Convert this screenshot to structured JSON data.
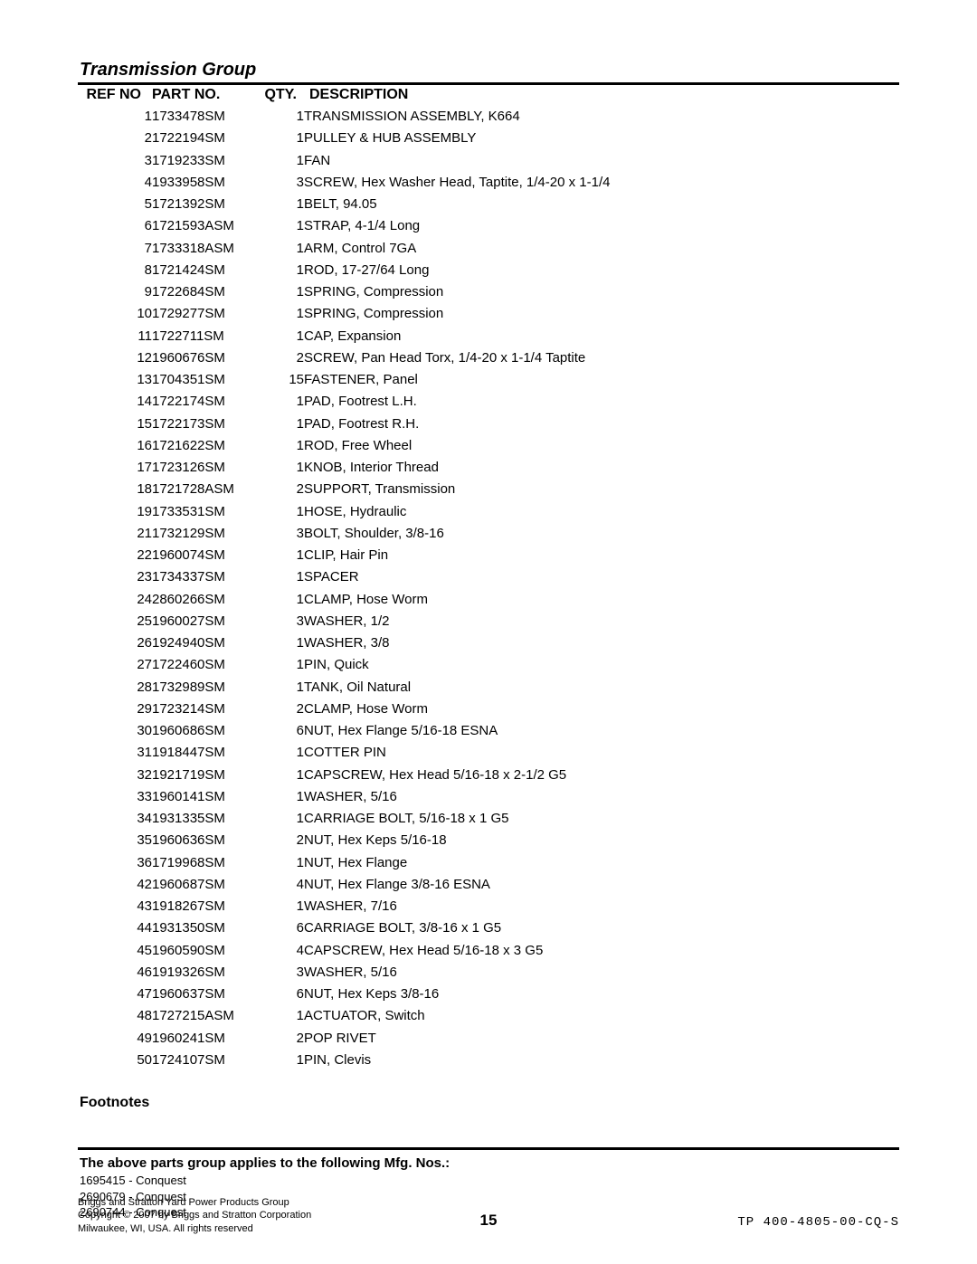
{
  "title": "Transmission Group",
  "columns": {
    "ref": "REF NO",
    "part": "PART NO.",
    "qty": "QTY.",
    "desc": "DESCRIPTION"
  },
  "rows": [
    {
      "ref": "1",
      "part": "1733478SM",
      "qty": "1",
      "desc": "TRANSMISSION ASSEMBLY, K664"
    },
    {
      "ref": "2",
      "part": "1722194SM",
      "qty": "1",
      "desc": "PULLEY & HUB ASSEMBLY"
    },
    {
      "ref": "3",
      "part": "1719233SM",
      "qty": "1",
      "desc": "FAN"
    },
    {
      "ref": "4",
      "part": "1933958SM",
      "qty": "3",
      "desc": "SCREW, Hex Washer Head, Taptite, 1/4-20 x 1-1/4"
    },
    {
      "ref": "5",
      "part": "1721392SM",
      "qty": "1",
      "desc": "BELT, 94.05"
    },
    {
      "ref": "6",
      "part": "1721593ASM",
      "qty": "1",
      "desc": "STRAP, 4-1/4 Long"
    },
    {
      "ref": "7",
      "part": "1733318ASM",
      "qty": "1",
      "desc": "ARM, Control 7GA"
    },
    {
      "ref": "8",
      "part": "1721424SM",
      "qty": "1",
      "desc": "ROD, 17-27/64 Long"
    },
    {
      "ref": "9",
      "part": "1722684SM",
      "qty": "1",
      "desc": "SPRING, Compression"
    },
    {
      "ref": "10",
      "part": "1729277SM",
      "qty": "1",
      "desc": "SPRING, Compression"
    },
    {
      "ref": "11",
      "part": "1722711SM",
      "qty": "1",
      "desc": "CAP, Expansion"
    },
    {
      "ref": "12",
      "part": "1960676SM",
      "qty": "2",
      "desc": "SCREW, Pan Head Torx, 1/4-20 x 1-1/4 Taptite"
    },
    {
      "ref": "13",
      "part": "1704351SM",
      "qty": "15",
      "desc": "FASTENER, Panel"
    },
    {
      "ref": "14",
      "part": "1722174SM",
      "qty": "1",
      "desc": "PAD, Footrest L.H."
    },
    {
      "ref": "15",
      "part": "1722173SM",
      "qty": "1",
      "desc": "PAD, Footrest R.H."
    },
    {
      "ref": "16",
      "part": "1721622SM",
      "qty": "1",
      "desc": "ROD, Free Wheel"
    },
    {
      "ref": "17",
      "part": "1723126SM",
      "qty": "1",
      "desc": "KNOB, Interior Thread"
    },
    {
      "ref": "18",
      "part": "1721728ASM",
      "qty": "2",
      "desc": "SUPPORT, Transmission"
    },
    {
      "ref": "19",
      "part": "1733531SM",
      "qty": "1",
      "desc": "HOSE, Hydraulic"
    },
    {
      "ref": "21",
      "part": "1732129SM",
      "qty": "3",
      "desc": "BOLT, Shoulder, 3/8-16"
    },
    {
      "ref": "22",
      "part": "1960074SM",
      "qty": "1",
      "desc": "CLIP, Hair Pin"
    },
    {
      "ref": "23",
      "part": "1734337SM",
      "qty": "1",
      "desc": "SPACER"
    },
    {
      "ref": "24",
      "part": "2860266SM",
      "qty": "1",
      "desc": "CLAMP, Hose Worm"
    },
    {
      "ref": "25",
      "part": "1960027SM",
      "qty": "3",
      "desc": "WASHER, 1/2"
    },
    {
      "ref": "26",
      "part": "1924940SM",
      "qty": "1",
      "desc": "WASHER, 3/8"
    },
    {
      "ref": "27",
      "part": "1722460SM",
      "qty": "1",
      "desc": "PIN, Quick"
    },
    {
      "ref": "28",
      "part": "1732989SM",
      "qty": "1",
      "desc": "TANK, Oil Natural"
    },
    {
      "ref": "29",
      "part": "1723214SM",
      "qty": "2",
      "desc": "CLAMP, Hose Worm"
    },
    {
      "ref": "30",
      "part": "1960686SM",
      "qty": "6",
      "desc": "NUT, Hex Flange 5/16-18 ESNA"
    },
    {
      "ref": "31",
      "part": "1918447SM",
      "qty": "1",
      "desc": "COTTER PIN"
    },
    {
      "ref": "32",
      "part": "1921719SM",
      "qty": "1",
      "desc": "CAPSCREW, Hex Head 5/16-18 x 2-1/2 G5"
    },
    {
      "ref": "33",
      "part": "1960141SM",
      "qty": "1",
      "desc": "WASHER, 5/16"
    },
    {
      "ref": "34",
      "part": "1931335SM",
      "qty": "1",
      "desc": "CARRIAGE BOLT, 5/16-18 x 1 G5"
    },
    {
      "ref": "35",
      "part": "1960636SM",
      "qty": "2",
      "desc": "NUT, Hex Keps 5/16-18"
    },
    {
      "ref": "36",
      "part": "1719968SM",
      "qty": "1",
      "desc": "NUT, Hex Flange"
    },
    {
      "ref": "42",
      "part": "1960687SM",
      "qty": "4",
      "desc": "NUT, Hex Flange 3/8-16 ESNA"
    },
    {
      "ref": "43",
      "part": "1918267SM",
      "qty": "1",
      "desc": "WASHER, 7/16"
    },
    {
      "ref": "44",
      "part": "1931350SM",
      "qty": "6",
      "desc": "CARRIAGE BOLT, 3/8-16 x 1 G5"
    },
    {
      "ref": "45",
      "part": "1960590SM",
      "qty": "4",
      "desc": "CAPSCREW, Hex Head 5/16-18 x 3 G5"
    },
    {
      "ref": "46",
      "part": "1919326SM",
      "qty": "3",
      "desc": "WASHER, 5/16"
    },
    {
      "ref": "47",
      "part": "1960637SM",
      "qty": "6",
      "desc": "NUT, Hex Keps 3/8-16"
    },
    {
      "ref": "48",
      "part": "1727215ASM",
      "qty": "1",
      "desc": "ACTUATOR, Switch"
    },
    {
      "ref": "49",
      "part": "1960241SM",
      "qty": "2",
      "desc": "POP RIVET"
    },
    {
      "ref": "50",
      "part": "1724107SM",
      "qty": "1",
      "desc": "PIN, Clevis"
    }
  ],
  "footnotes_title": "Footnotes",
  "applies_title": "The above parts group applies to the following Mfg. Nos.:",
  "mfg_nos": [
    "1695415 - Conquest",
    "2690679 - Conquest",
    "2690744 - Conquest"
  ],
  "footer": {
    "line1": "Briggs and Stratton Yard Power Products Group",
    "line2": "Copyright © 2007 by Briggs and Stratton Corporation",
    "line3": "Milwaukee, WI, USA. All rights reserved",
    "page": "15",
    "doc": "TP 400-4805-00-CQ-S"
  }
}
